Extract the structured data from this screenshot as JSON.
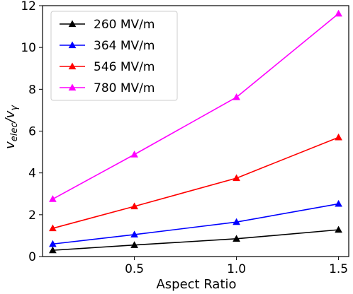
{
  "chart_data": {
    "type": "line",
    "title": "",
    "xlabel": "Aspect Ratio",
    "ylabel_main": "v",
    "ylabel_sub1": "elec",
    "ylabel_sep": "/v",
    "ylabel_sub2": "γ",
    "x": [
      0.1,
      0.5,
      1.0,
      1.5
    ],
    "xlim": [
      0.05,
      1.55
    ],
    "ylim": [
      0,
      12
    ],
    "xticks": [
      0.5,
      1.0,
      1.5
    ],
    "xtick_labels": [
      "0.5",
      "1.0",
      "1.5"
    ],
    "yticks": [
      0,
      2,
      4,
      6,
      8,
      10,
      12
    ],
    "ytick_labels": [
      "0",
      "2",
      "4",
      "6",
      "8",
      "10",
      "12"
    ],
    "grid": false,
    "legend_position": "top-left",
    "marker": "triangle",
    "series": [
      {
        "name": "260 MV/m",
        "color": "#000000",
        "values": [
          0.3,
          0.55,
          0.85,
          1.28
        ]
      },
      {
        "name": "364 MV/m",
        "color": "#0000ff",
        "values": [
          0.6,
          1.05,
          1.65,
          2.52
        ]
      },
      {
        "name": "546 MV/m",
        "color": "#ff0000",
        "values": [
          1.35,
          2.4,
          3.75,
          5.7
        ]
      },
      {
        "name": "780 MV/m",
        "color": "#ff00ff",
        "values": [
          2.75,
          4.88,
          7.62,
          11.62
        ]
      }
    ]
  }
}
